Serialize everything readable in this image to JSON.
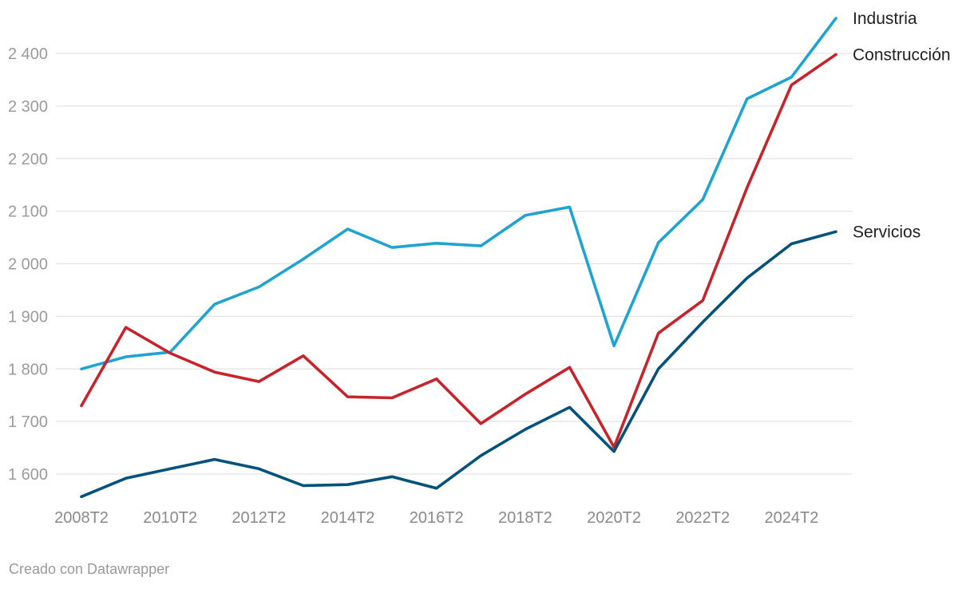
{
  "chart_data": {
    "type": "line",
    "title": "",
    "xlabel": "",
    "ylabel": "",
    "ylim": [
      1550,
      2480
    ],
    "y_ticks": [
      1600,
      1700,
      1800,
      1900,
      2000,
      2100,
      2200,
      2300,
      2400
    ],
    "y_tick_labels": [
      "1 600",
      "1 700",
      "1 800",
      "1 900",
      "2 000",
      "2 100",
      "2 200",
      "2 300",
      "2 400"
    ],
    "grid": true,
    "x": [
      "2008T2",
      "2009T2",
      "2010T2",
      "2011T2",
      "2012T2",
      "2013T2",
      "2014T2",
      "2015T2",
      "2016T2",
      "2017T2",
      "2018T2",
      "2019T2",
      "2020T2",
      "2021T2",
      "2022T2",
      "2023T2",
      "2024T2",
      "2025T2"
    ],
    "x_tick_labels": [
      "2008T2",
      "2010T2",
      "2012T2",
      "2014T2",
      "2016T2",
      "2018T2",
      "2020T2",
      "2022T2",
      "2024T2"
    ],
    "series": [
      {
        "name": "Industria",
        "color": "#1fa3d1",
        "values": [
          1800,
          1823,
          1832,
          1923,
          1956,
          2009,
          2066,
          2031,
          2039,
          2034,
          2092,
          2108,
          1844,
          2040,
          2122,
          2314,
          2355,
          2467
        ]
      },
      {
        "name": "Construcción",
        "color": "#c7232b",
        "values": [
          1730,
          1879,
          1830,
          1794,
          1776,
          1825,
          1747,
          1745,
          1781,
          1696,
          1752,
          1803,
          1651,
          1868,
          1930,
          2145,
          2340,
          2398
        ]
      },
      {
        "name": "Servicios",
        "color": "#04517c",
        "values": [
          1557,
          1592,
          1610,
          1628,
          1610,
          1578,
          1580,
          1595,
          1573,
          1635,
          1685,
          1727,
          1643,
          1800,
          1889,
          1973,
          2038,
          2061
        ]
      }
    ]
  },
  "footer": {
    "credit": "Creado con Datawrapper"
  }
}
